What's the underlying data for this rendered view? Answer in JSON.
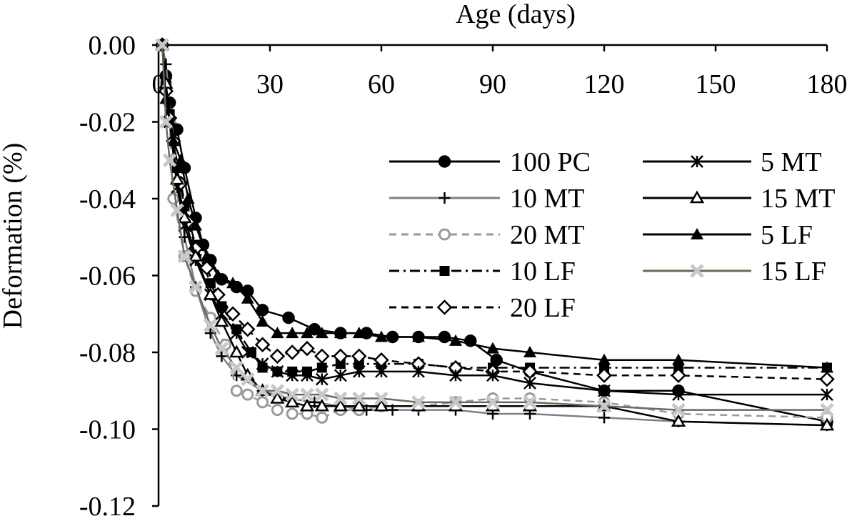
{
  "chart_data": {
    "type": "line",
    "title": "",
    "xlabel": "Age (days)",
    "ylabel": "Deformation (%)",
    "xlim": [
      0,
      180
    ],
    "ylim": [
      -0.12,
      0.0
    ],
    "x_axis_position": "top",
    "x_ticks": [
      0,
      30,
      60,
      90,
      120,
      150,
      180
    ],
    "x_tick_labels": [
      "0",
      "30",
      "60",
      "90",
      "120",
      "150",
      "180"
    ],
    "y_ticks": [
      0.0,
      -0.02,
      -0.04,
      -0.06,
      -0.08,
      -0.1,
      -0.12
    ],
    "y_tick_labels": [
      "0.00",
      "-0.02",
      "-0.04",
      "-0.06",
      "-0.08",
      "-0.10",
      "-0.12"
    ],
    "grid": false,
    "legend_position": "right",
    "series": [
      {
        "name": "100 PC",
        "color": "#000000",
        "marker": "circle-filled",
        "dash": "solid",
        "points": [
          [
            1,
            0.0
          ],
          [
            2,
            -0.008
          ],
          [
            3,
            -0.015
          ],
          [
            5,
            -0.022
          ],
          [
            7,
            -0.032
          ],
          [
            10,
            -0.045
          ],
          [
            12,
            -0.052
          ],
          [
            14,
            -0.056
          ],
          [
            17,
            -0.061
          ],
          [
            21,
            -0.063
          ],
          [
            24,
            -0.064
          ],
          [
            28,
            -0.069
          ],
          [
            35,
            -0.071
          ],
          [
            42,
            -0.074
          ],
          [
            49,
            -0.075
          ],
          [
            56,
            -0.075
          ],
          [
            63,
            -0.076
          ],
          [
            70,
            -0.076
          ],
          [
            77,
            -0.076
          ],
          [
            84,
            -0.077
          ],
          [
            91,
            -0.082
          ],
          [
            100,
            -0.085
          ],
          [
            120,
            -0.09
          ],
          [
            140,
            -0.09
          ],
          [
            180,
            -0.098
          ]
        ]
      },
      {
        "name": "10 MT",
        "color": "#808080",
        "marker": "plus",
        "dash": "solid",
        "points": [
          [
            1,
            0.0
          ],
          [
            2,
            -0.005
          ],
          [
            3,
            -0.015
          ],
          [
            5,
            -0.035
          ],
          [
            7,
            -0.05
          ],
          [
            10,
            -0.063
          ],
          [
            14,
            -0.075
          ],
          [
            17,
            -0.081
          ],
          [
            21,
            -0.086
          ],
          [
            28,
            -0.09
          ],
          [
            35,
            -0.092
          ],
          [
            42,
            -0.093
          ],
          [
            49,
            -0.094
          ],
          [
            56,
            -0.095
          ],
          [
            63,
            -0.095
          ],
          [
            70,
            -0.095
          ],
          [
            80,
            -0.095
          ],
          [
            90,
            -0.096
          ],
          [
            100,
            -0.096
          ],
          [
            120,
            -0.097
          ],
          [
            140,
            -0.098
          ],
          [
            180,
            -0.099
          ]
        ]
      },
      {
        "name": "20 MT",
        "color": "#999999",
        "marker": "circle-open",
        "dash": "dashed",
        "points": [
          [
            1,
            0.0
          ],
          [
            2,
            -0.01
          ],
          [
            3,
            -0.02
          ],
          [
            4,
            -0.04
          ],
          [
            7,
            -0.055
          ],
          [
            10,
            -0.064
          ],
          [
            14,
            -0.071
          ],
          [
            18,
            -0.078
          ],
          [
            21,
            -0.09
          ],
          [
            24,
            -0.091
          ],
          [
            28,
            -0.093
          ],
          [
            32,
            -0.095
          ],
          [
            36,
            -0.096
          ],
          [
            40,
            -0.096
          ],
          [
            44,
            -0.097
          ],
          [
            49,
            -0.095
          ],
          [
            54,
            -0.095
          ],
          [
            60,
            -0.094
          ],
          [
            70,
            -0.094
          ],
          [
            80,
            -0.093
          ],
          [
            90,
            -0.092
          ],
          [
            100,
            -0.092
          ],
          [
            120,
            -0.093
          ],
          [
            140,
            -0.096
          ],
          [
            180,
            -0.097
          ]
        ]
      },
      {
        "name": "10 LF",
        "color": "#000000",
        "marker": "square-filled",
        "dash": "dashdot",
        "points": [
          [
            1,
            0.0
          ],
          [
            2,
            -0.01
          ],
          [
            3,
            -0.018
          ],
          [
            5,
            -0.032
          ],
          [
            7,
            -0.042
          ],
          [
            10,
            -0.052
          ],
          [
            14,
            -0.062
          ],
          [
            17,
            -0.068
          ],
          [
            21,
            -0.074
          ],
          [
            25,
            -0.08
          ],
          [
            28,
            -0.084
          ],
          [
            32,
            -0.085
          ],
          [
            36,
            -0.085
          ],
          [
            40,
            -0.085
          ],
          [
            44,
            -0.084
          ],
          [
            49,
            -0.083
          ],
          [
            54,
            -0.083
          ],
          [
            60,
            -0.083
          ],
          [
            70,
            -0.083
          ],
          [
            80,
            -0.084
          ],
          [
            90,
            -0.084
          ],
          [
            100,
            -0.084
          ],
          [
            120,
            -0.084
          ],
          [
            140,
            -0.084
          ],
          [
            180,
            -0.084
          ]
        ]
      },
      {
        "name": "20 LF",
        "color": "#000000",
        "marker": "diamond-open",
        "dash": "dashed",
        "points": [
          [
            1,
            0.0
          ],
          [
            2,
            -0.012
          ],
          [
            3,
            -0.019
          ],
          [
            4,
            -0.025
          ],
          [
            6,
            -0.036
          ],
          [
            8,
            -0.046
          ],
          [
            10,
            -0.053
          ],
          [
            13,
            -0.058
          ],
          [
            16,
            -0.065
          ],
          [
            20,
            -0.07
          ],
          [
            24,
            -0.074
          ],
          [
            28,
            -0.078
          ],
          [
            32,
            -0.081
          ],
          [
            36,
            -0.08
          ],
          [
            40,
            -0.079
          ],
          [
            44,
            -0.081
          ],
          [
            49,
            -0.081
          ],
          [
            54,
            -0.081
          ],
          [
            60,
            -0.082
          ],
          [
            70,
            -0.083
          ],
          [
            80,
            -0.084
          ],
          [
            90,
            -0.085
          ],
          [
            100,
            -0.085
          ],
          [
            120,
            -0.086
          ],
          [
            140,
            -0.086
          ],
          [
            180,
            -0.087
          ]
        ]
      },
      {
        "name": "5 MT",
        "color": "#000000",
        "marker": "asterisk",
        "dash": "solid",
        "points": [
          [
            1,
            0.0
          ],
          [
            2,
            -0.01
          ],
          [
            3,
            -0.02
          ],
          [
            5,
            -0.037
          ],
          [
            7,
            -0.047
          ],
          [
            10,
            -0.056
          ],
          [
            14,
            -0.065
          ],
          [
            17,
            -0.07
          ],
          [
            21,
            -0.075
          ],
          [
            24,
            -0.08
          ],
          [
            28,
            -0.083
          ],
          [
            32,
            -0.085
          ],
          [
            36,
            -0.086
          ],
          [
            40,
            -0.086
          ],
          [
            44,
            -0.087
          ],
          [
            49,
            -0.086
          ],
          [
            54,
            -0.085
          ],
          [
            60,
            -0.085
          ],
          [
            70,
            -0.085
          ],
          [
            80,
            -0.086
          ],
          [
            90,
            -0.086
          ],
          [
            100,
            -0.088
          ],
          [
            120,
            -0.09
          ],
          [
            140,
            -0.091
          ],
          [
            180,
            -0.091
          ]
        ]
      },
      {
        "name": "15 MT",
        "color": "#000000",
        "marker": "triangle-open",
        "dash": "solid",
        "points": [
          [
            1,
            0.0
          ],
          [
            2,
            -0.01
          ],
          [
            3,
            -0.02
          ],
          [
            5,
            -0.035
          ],
          [
            7,
            -0.045
          ],
          [
            10,
            -0.055
          ],
          [
            14,
            -0.065
          ],
          [
            17,
            -0.072
          ],
          [
            21,
            -0.08
          ],
          [
            24,
            -0.086
          ],
          [
            28,
            -0.09
          ],
          [
            32,
            -0.092
          ],
          [
            36,
            -0.093
          ],
          [
            40,
            -0.094
          ],
          [
            44,
            -0.094
          ],
          [
            49,
            -0.094
          ],
          [
            54,
            -0.094
          ],
          [
            60,
            -0.094
          ],
          [
            70,
            -0.094
          ],
          [
            80,
            -0.094
          ],
          [
            90,
            -0.094
          ],
          [
            100,
            -0.094
          ],
          [
            120,
            -0.094
          ],
          [
            140,
            -0.098
          ],
          [
            180,
            -0.099
          ]
        ]
      },
      {
        "name": "5 LF",
        "color": "#000000",
        "marker": "triangle-filled",
        "dash": "solid",
        "points": [
          [
            1,
            0.0
          ],
          [
            2,
            -0.014
          ],
          [
            3,
            -0.02
          ],
          [
            4,
            -0.025
          ],
          [
            6,
            -0.03
          ],
          [
            8,
            -0.04
          ],
          [
            10,
            -0.047
          ],
          [
            13,
            -0.055
          ],
          [
            16,
            -0.06
          ],
          [
            20,
            -0.062
          ],
          [
            24,
            -0.066
          ],
          [
            28,
            -0.072
          ],
          [
            32,
            -0.075
          ],
          [
            36,
            -0.075
          ],
          [
            40,
            -0.075
          ],
          [
            44,
            -0.075
          ],
          [
            49,
            -0.075
          ],
          [
            54,
            -0.075
          ],
          [
            60,
            -0.076
          ],
          [
            70,
            -0.076
          ],
          [
            80,
            -0.077
          ],
          [
            90,
            -0.079
          ],
          [
            100,
            -0.08
          ],
          [
            120,
            -0.082
          ],
          [
            140,
            -0.082
          ],
          [
            180,
            -0.084
          ]
        ]
      },
      {
        "name": "15 LF",
        "color": "#6b6b5a",
        "marker": "x-box",
        "dash": "solid",
        "points": [
          [
            1,
            0.0
          ],
          [
            2,
            -0.02
          ],
          [
            3,
            -0.03
          ],
          [
            5,
            -0.043
          ],
          [
            7,
            -0.055
          ],
          [
            10,
            -0.063
          ],
          [
            14,
            -0.073
          ],
          [
            17,
            -0.079
          ],
          [
            21,
            -0.084
          ],
          [
            24,
            -0.087
          ],
          [
            28,
            -0.09
          ],
          [
            32,
            -0.09
          ],
          [
            36,
            -0.091
          ],
          [
            40,
            -0.091
          ],
          [
            44,
            -0.091
          ],
          [
            49,
            -0.092
          ],
          [
            54,
            -0.092
          ],
          [
            60,
            -0.092
          ],
          [
            70,
            -0.093
          ],
          [
            80,
            -0.093
          ],
          [
            90,
            -0.093
          ],
          [
            100,
            -0.093
          ],
          [
            120,
            -0.094
          ],
          [
            140,
            -0.095
          ],
          [
            180,
            -0.095
          ]
        ]
      }
    ]
  }
}
